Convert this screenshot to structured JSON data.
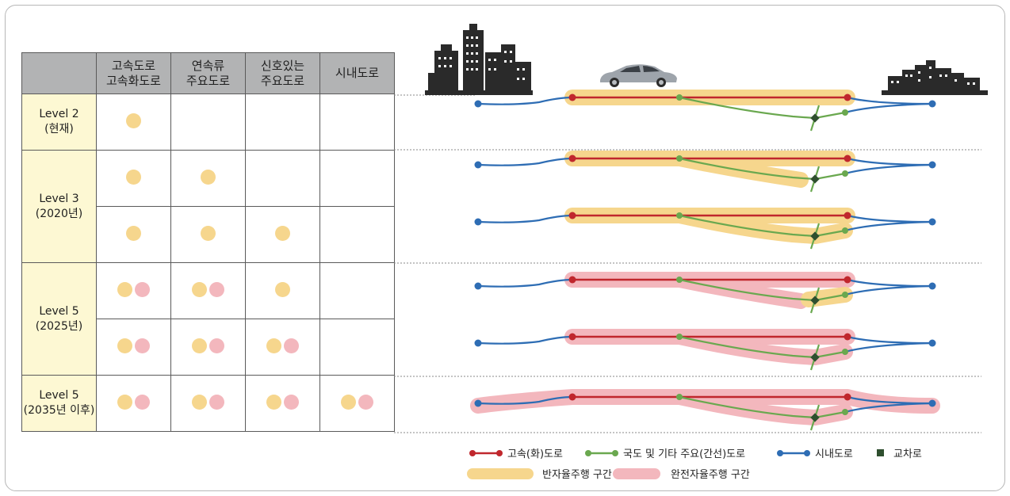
{
  "table": {
    "headers": [
      "",
      [
        "고속도로",
        "고속화도로"
      ],
      [
        "연속류",
        "주요도로"
      ],
      [
        "신호있는",
        "주요도로"
      ],
      [
        "시내도로"
      ]
    ],
    "levels": [
      {
        "label": [
          "Level 2",
          "(현재)"
        ],
        "rows": [
          [
            "semi",
            "",
            "",
            ""
          ]
        ]
      },
      {
        "label": [
          "Level 3",
          "(2020년)"
        ],
        "rows": [
          [
            "semi",
            "semi",
            "",
            ""
          ],
          [
            "semi",
            "semi",
            "semi",
            ""
          ]
        ]
      },
      {
        "label": [
          "Level 5",
          "(2025년)"
        ],
        "rows": [
          [
            "both",
            "both",
            "semi",
            ""
          ],
          [
            "both",
            "both",
            "both",
            ""
          ]
        ]
      },
      {
        "label": [
          "Level 5",
          "(2035년 이후)"
        ],
        "rows": [
          [
            "both",
            "both",
            "both",
            "both"
          ]
        ]
      }
    ]
  },
  "legend": {
    "highway": "고속(화)도로",
    "national": "국도 및 기타  주요(간선)도로",
    "city": "시내도로",
    "intersection": "교차로",
    "semi_auto": "반자율주행 구간",
    "full_auto": "완전자율주행 구간"
  },
  "colors": {
    "highway": "#c0272d",
    "national": "#6aa84f",
    "city": "#2e6db4",
    "intersection": "#2f4f2f",
    "semi_band": "#f6d68d",
    "full_band": "#f3b7bd",
    "header_bg": "#b2b3b4",
    "level_bg": "#fdf8d3"
  },
  "icons": [
    "city-skyline-left-icon",
    "car-icon",
    "city-skyline-right-icon"
  ]
}
